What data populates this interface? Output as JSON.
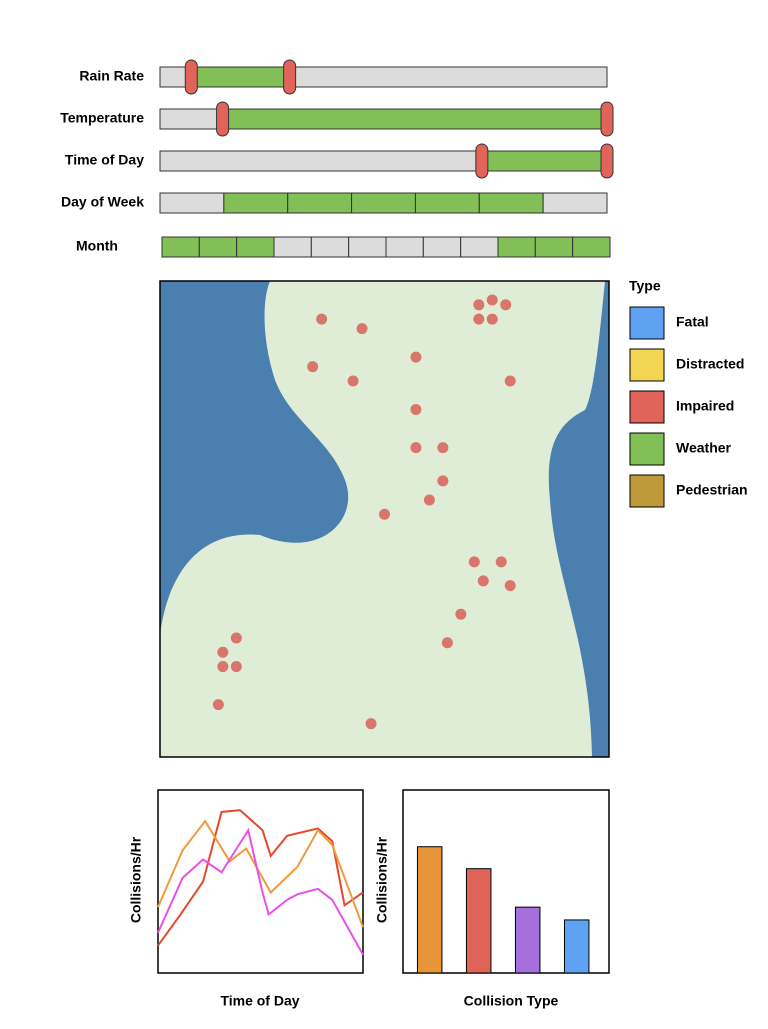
{
  "filters": [
    {
      "label": "Rain Rate",
      "kind": "range",
      "range": [
        0.07,
        0.29
      ],
      "lim": [
        0,
        1
      ]
    },
    {
      "label": "Temperature",
      "kind": "range",
      "range": [
        0.14,
        1.0
      ],
      "lim": [
        0,
        1
      ]
    },
    {
      "label": "Time of Day",
      "kind": "range",
      "range": [
        0.72,
        1.0
      ],
      "lim": [
        0,
        1
      ]
    },
    {
      "label": "Day of Week",
      "kind": "segments",
      "selected": [
        false,
        true,
        true,
        true,
        true,
        true,
        false
      ]
    },
    {
      "label": "Month",
      "kind": "segments",
      "selected": [
        true,
        true,
        true,
        false,
        false,
        false,
        false,
        false,
        false,
        true,
        true,
        true
      ]
    }
  ],
  "map": {
    "xlim": [
      0,
      100
    ],
    "ylim": [
      0,
      100
    ],
    "color": "#d9675f",
    "points": {
      "x": [
        36,
        45,
        71,
        74,
        77,
        71,
        74,
        57,
        34,
        43,
        78,
        57,
        57,
        63,
        63,
        60,
        50,
        70,
        76,
        72,
        78,
        67,
        64,
        17,
        14,
        14,
        17,
        13,
        47
      ],
      "y": [
        8,
        10,
        5,
        4,
        5,
        8,
        8,
        16,
        18,
        21,
        21,
        27,
        35,
        35,
        42,
        46,
        49,
        59,
        59,
        63,
        64,
        70,
        76,
        75,
        78,
        81,
        81,
        89,
        93
      ]
    }
  },
  "legend": {
    "title": "Type",
    "items": [
      {
        "name": "Fatal",
        "color": "#5fa2f2"
      },
      {
        "name": "Distracted",
        "color": "#f2d552"
      },
      {
        "name": "Impaired",
        "color": "#e0645a"
      },
      {
        "name": "Weather",
        "color": "#82bf56"
      },
      {
        "name": "Pedestrian",
        "color": "#bf9a3a"
      }
    ]
  },
  "line_chart": {
    "type": "line",
    "y_label": "Collisions/Hr",
    "x_label": "Time of Day",
    "xlim": [
      0,
      100
    ],
    "ylim": [
      0,
      100
    ],
    "series": [
      {
        "color": "#e8472c",
        "x": [
          0,
          11,
          22,
          31,
          40,
          51,
          55,
          63,
          78,
          85,
          91,
          100
        ],
        "values": [
          15,
          32,
          50,
          88,
          89,
          78,
          64,
          75,
          79,
          72,
          37,
          44
        ]
      },
      {
        "color": "#ef9a3c",
        "x": [
          0,
          12,
          23,
          35,
          43,
          55,
          68,
          78,
          85,
          100
        ],
        "values": [
          36,
          67,
          83,
          61,
          68,
          44,
          58,
          78,
          70,
          25
        ]
      },
      {
        "color": "#ec4fe6",
        "x": [
          0,
          12,
          22,
          31,
          44,
          51,
          54,
          63,
          68,
          78,
          85,
          100
        ],
        "values": [
          22,
          52,
          62,
          55,
          78,
          44,
          32,
          40,
          43,
          46,
          40,
          10
        ]
      }
    ]
  },
  "bar_chart": {
    "type": "bar",
    "y_label": "Collisions/Hr",
    "x_label": "Collision Type",
    "ylim": [
      0,
      100
    ],
    "values": [
      69,
      57,
      36,
      29
    ],
    "colors": [
      "#e8953a",
      "#e0645a",
      "#a66fde",
      "#5fa2f2"
    ]
  }
}
